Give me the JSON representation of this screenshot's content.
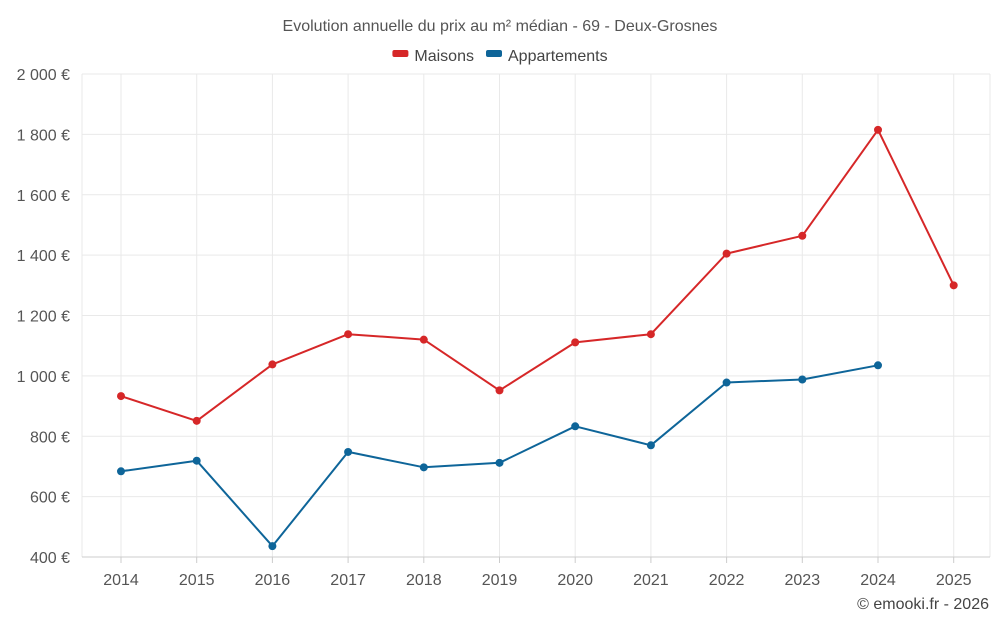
{
  "chart_data": {
    "type": "line",
    "title": "Evolution annuelle du prix au m² médian - 69 - Deux-Grosnes",
    "categories": [
      "2014",
      "2015",
      "2016",
      "2017",
      "2018",
      "2019",
      "2020",
      "2021",
      "2022",
      "2023",
      "2024",
      "2025"
    ],
    "series": [
      {
        "name": "Maisons",
        "color": "#d62728",
        "values": [
          933,
          851,
          1038,
          1138,
          1120,
          952,
          1111,
          1138,
          1405,
          1464,
          1815,
          1300
        ]
      },
      {
        "name": "Appartements",
        "color": "#0e6599",
        "values": [
          684,
          719,
          436,
          748,
          697,
          712,
          833,
          770,
          978,
          988,
          1035,
          null
        ]
      }
    ],
    "ylim": [
      400,
      2000
    ],
    "yticks": [
      400,
      600,
      800,
      1000,
      1200,
      1400,
      1600,
      1800,
      2000
    ],
    "ytick_labels": [
      "400 €",
      "600 €",
      "800 €",
      "1 000 €",
      "1 200 €",
      "1 400 €",
      "1 600 €",
      "1 800 €",
      "2 000 €"
    ],
    "xlabel": "",
    "ylabel": "",
    "grid": true,
    "legend_position": "top-center"
  },
  "credit": "© emooki.fr - 2026"
}
